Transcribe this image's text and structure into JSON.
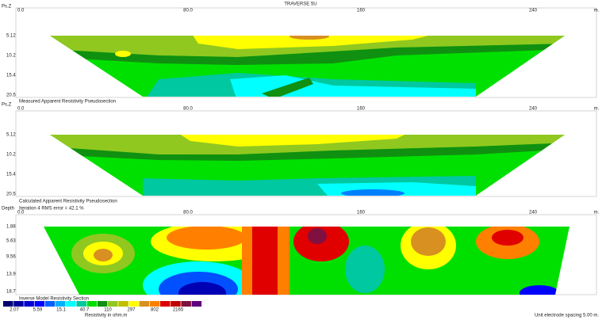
{
  "panels": [
    {
      "title": "TRAVERSE 5U",
      "axis_label": "Ps.Z",
      "x_labels": [
        "0.0",
        "80.0",
        "160",
        "240",
        "m."
      ],
      "depth_labels": [
        "5.12",
        "10.2",
        "15.4",
        "20.5"
      ],
      "caption": "Measured Apparent Resistivity Pseudosection"
    },
    {
      "axis_label": "Ps.Z",
      "x_labels": [
        "0.0",
        "80.0",
        "160",
        "240",
        "m."
      ],
      "depth_labels": [
        "5.12",
        "10.2",
        "15.4",
        "20.5"
      ],
      "caption": "Calculated Apparent Resistivity Pseudosection"
    },
    {
      "axis_label": "Depth",
      "iteration": "Iteration 4 RMS error = 42.1 %",
      "x_labels": [
        "0.0",
        "80.0",
        "160",
        "240",
        "m."
      ],
      "depth_labels": [
        "1.88",
        "5.63",
        "9.56",
        "13.9",
        "18.7"
      ],
      "caption": "Inverse Model Resistivity Section"
    }
  ],
  "legend": {
    "labels": [
      "2.07",
      "5.59",
      "15.1",
      "40.7",
      "110",
      "297",
      "802",
      "2165"
    ],
    "unit": "Resistivity in ohm.m"
  },
  "footer": "Unit electrode spacing 5.00 m."
}
